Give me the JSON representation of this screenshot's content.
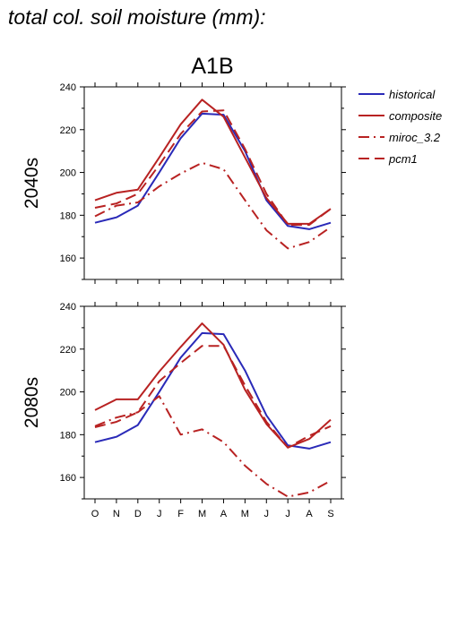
{
  "page": {
    "title": "total col. soil moisture (mm):"
  },
  "figure": {
    "scenario": "A1B"
  },
  "legend": {
    "items": [
      {
        "key": "historical",
        "label": "historical",
        "color": "#2a2ab8",
        "dash": "solid"
      },
      {
        "key": "composite",
        "label": "composite",
        "color": "#b82222",
        "dash": "solid"
      },
      {
        "key": "miroc",
        "label": "miroc_3.2",
        "color": "#b82222",
        "dash": "dashdot"
      },
      {
        "key": "pcm1",
        "label": "pcm1",
        "color": "#b82222",
        "dash": "dashed"
      }
    ]
  },
  "chart_data": [
    {
      "type": "line",
      "ylabel": "2040s",
      "categories": [
        "O",
        "N",
        "D",
        "J",
        "F",
        "M",
        "A",
        "M",
        "J",
        "J",
        "A",
        "S"
      ],
      "ylim": [
        150,
        240
      ],
      "yticks": [
        160,
        180,
        200,
        220,
        240
      ],
      "series": [
        {
          "name": "historical",
          "values": [
            176.5,
            179,
            184.5,
            200,
            216,
            227.5,
            227,
            210,
            187,
            175,
            173.5,
            176.5
          ]
        },
        {
          "name": "composite",
          "values": [
            187,
            190.5,
            192,
            207,
            222.5,
            234,
            226,
            207,
            188,
            176,
            176,
            183
          ]
        },
        {
          "name": "miroc_3.2",
          "values": [
            179.5,
            184.5,
            186,
            193.5,
            199.5,
            204.5,
            201.5,
            187,
            173,
            164.5,
            167.5,
            174.5
          ]
        },
        {
          "name": "pcm1",
          "values": [
            183.5,
            185.5,
            190,
            203.5,
            218,
            228.5,
            229,
            211,
            190,
            175.5,
            175.5,
            183
          ]
        }
      ]
    },
    {
      "type": "line",
      "ylabel": "2080s",
      "categories": [
        "O",
        "N",
        "D",
        "J",
        "F",
        "M",
        "A",
        "M",
        "J",
        "J",
        "A",
        "S"
      ],
      "ylim": [
        150,
        240
      ],
      "yticks": [
        160,
        180,
        200,
        220,
        240
      ],
      "series": [
        {
          "name": "historical",
          "values": [
            176.5,
            179,
            184.5,
            200,
            216,
            227.5,
            227,
            210,
            189,
            175,
            173.5,
            176.5
          ]
        },
        {
          "name": "composite",
          "values": [
            191.5,
            196.5,
            196.5,
            209.5,
            221,
            232,
            222,
            201,
            185,
            174,
            178,
            187
          ]
        },
        {
          "name": "miroc_3.2",
          "values": [
            184,
            188,
            190.5,
            198,
            180,
            182.5,
            176.5,
            165.5,
            157,
            151,
            153,
            158.5
          ]
        },
        {
          "name": "pcm1",
          "values": [
            183.5,
            186,
            190.5,
            205,
            213.5,
            221.5,
            221.5,
            203,
            186,
            174,
            179.5,
            184
          ]
        }
      ]
    }
  ]
}
